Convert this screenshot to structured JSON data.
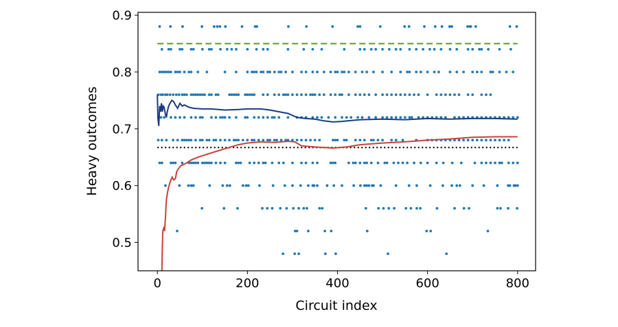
{
  "chart_data": {
    "type": "scatter",
    "title": "",
    "xlabel": "Circuit index",
    "ylabel": "Heavy outcomes",
    "xlim": [
      -43,
      840
    ],
    "ylim": [
      0.45,
      0.905
    ],
    "xticks": [
      0,
      200,
      400,
      600,
      800
    ],
    "yticks": [
      0.5,
      0.6,
      0.7,
      0.8,
      0.9
    ],
    "xtick_labels": [
      "0",
      "200",
      "400",
      "600",
      "800"
    ],
    "ytick_labels": [
      "0.5",
      "0.6",
      "0.7",
      "0.8",
      "0.9"
    ],
    "grid": false,
    "colors": {
      "points": "#1f77b4",
      "cumulative_mean": "#1a3a80",
      "lower_bound": "#c8413a",
      "ideal": "#5a9a2a",
      "threshold": "#000000"
    },
    "scatter_levels": [
      {
        "y": 0.88,
        "x": [
          5,
          29,
          56,
          99,
          126,
          133,
          139,
          151,
          188,
          217,
          221,
          291,
          331,
          389,
          445,
          450,
          495,
          549,
          559,
          593,
          617,
          632,
          649,
          654,
          689,
          694,
          696,
          707,
          783,
          798
        ]
      },
      {
        "y": 0.84,
        "x": [
          10,
          25,
          30,
          50,
          55,
          75,
          80,
          100,
          115,
          120,
          140,
          155,
          165,
          175,
          200,
          220,
          235,
          245,
          290,
          325,
          345,
          365,
          415,
          450,
          460,
          475,
          485,
          500,
          515,
          530,
          540,
          560,
          575,
          590,
          605,
          615,
          630,
          650,
          665,
          690,
          700,
          715,
          720,
          735,
          760,
          785
        ]
      },
      {
        "y": 0.8,
        "x": [
          5,
          10,
          15,
          20,
          25,
          30,
          40,
          45,
          50,
          60,
          70,
          75,
          90,
          110,
          150,
          175,
          200,
          210,
          215,
          220,
          230,
          235,
          245,
          250,
          260,
          270,
          275,
          285,
          300,
          320,
          330,
          345,
          355,
          370,
          385,
          395,
          400,
          410,
          415,
          425,
          440,
          455,
          465,
          480,
          500,
          520,
          540,
          555,
          560,
          575,
          585,
          600,
          615,
          625,
          650,
          665,
          680,
          700,
          710,
          720,
          740,
          745,
          760,
          775,
          790
        ]
      },
      {
        "y": 0.76,
        "x": [
          2,
          8,
          12,
          18,
          22,
          28,
          35,
          42,
          48,
          55,
          60,
          65,
          75,
          80,
          85,
          90,
          95,
          100,
          105,
          115,
          120,
          130,
          135,
          160,
          165,
          170,
          175,
          180,
          195,
          200,
          205,
          210,
          215,
          235,
          245,
          260,
          270,
          280,
          285,
          290,
          300,
          310,
          320,
          330,
          340,
          345,
          350,
          360,
          370,
          385,
          395,
          405,
          410,
          425,
          440,
          450,
          460,
          470,
          485,
          500,
          510,
          520,
          530,
          540,
          550,
          560,
          570,
          580,
          600,
          620,
          630,
          640,
          650,
          660,
          670,
          690,
          700,
          720,
          730,
          740
        ]
      },
      {
        "y": 0.72,
        "x": [
          3,
          8,
          15,
          30,
          40,
          50,
          60,
          75,
          85,
          95,
          100,
          120,
          130,
          140,
          145,
          150,
          160,
          175,
          195,
          200,
          215,
          225,
          235,
          245,
          255,
          260,
          270,
          290,
          310,
          320,
          330,
          345,
          355,
          365,
          380,
          395,
          410,
          420,
          430,
          445,
          455,
          470,
          485,
          500,
          510,
          520,
          530,
          540,
          550,
          560,
          565,
          580,
          590,
          600,
          610,
          620,
          630,
          640,
          660,
          670,
          680,
          690,
          700,
          710,
          720,
          730,
          740,
          750,
          760,
          770,
          780,
          790,
          800
        ]
      },
      {
        "y": 0.68,
        "x": [
          2,
          10,
          20,
          35,
          45,
          55,
          60,
          65,
          70,
          75,
          85,
          95,
          100,
          110,
          115,
          125,
          130,
          140,
          150,
          160,
          170,
          175,
          180,
          190,
          200,
          210,
          215,
          225,
          235,
          245,
          250,
          260,
          265,
          275,
          285,
          290,
          300,
          310,
          320,
          330,
          340,
          350,
          360,
          390,
          395,
          400,
          415,
          420,
          440,
          450,
          460,
          475,
          480,
          490,
          500,
          520,
          530,
          545,
          575,
          600,
          610,
          620,
          630,
          640,
          650,
          660,
          670,
          680,
          690,
          700,
          710,
          720,
          730,
          740,
          750,
          760,
          770,
          780
        ]
      },
      {
        "y": 0.64,
        "x": [
          5,
          10,
          30,
          35,
          40,
          55,
          70,
          75,
          80,
          85,
          90,
          100,
          105,
          110,
          115,
          120,
          130,
          140,
          150,
          175,
          180,
          185,
          205,
          215,
          225,
          235,
          240,
          255,
          270,
          280,
          300,
          320,
          330,
          345,
          355,
          385,
          390,
          395,
          425,
          435,
          440,
          450,
          460,
          465,
          475,
          490,
          505,
          510,
          525,
          535,
          545,
          555,
          570,
          585,
          600,
          620,
          635,
          655,
          675,
          705,
          720,
          730,
          740,
          750,
          760,
          765,
          780,
          790,
          800
        ]
      },
      {
        "y": 0.6,
        "x": [
          18,
          49,
          69,
          75,
          80,
          116,
          145,
          155,
          161,
          190,
          197,
          202,
          227,
          257,
          283,
          300,
          318,
          335,
          345,
          348,
          355,
          377,
          392,
          410,
          436,
          451,
          460,
          465,
          470,
          477,
          480,
          496,
          530,
          559,
          576,
          606,
          634,
          654,
          665,
          672,
          700,
          725,
          755,
          779,
          783,
          792,
          795,
          800
        ]
      },
      {
        "y": 0.56,
        "x": [
          99,
          148,
          178,
          233,
          244,
          255,
          273,
          287,
          302,
          314,
          325,
          332,
          360,
          366,
          463,
          491,
          502,
          514,
          526,
          552,
          563,
          576,
          584,
          621,
          660,
          681,
          692,
          755,
          762,
          779,
          799
        ]
      },
      {
        "y": 0.52,
        "x": [
          44,
          306,
          310,
          335,
          372,
          386,
          466,
          598,
          607,
          734
        ]
      },
      {
        "y": 0.48,
        "x": [
          279,
          305,
          314,
          373,
          396,
          512,
          642
        ]
      }
    ],
    "series": [
      {
        "type": "line",
        "style": "dashed",
        "color_key": "ideal",
        "x": [
          0,
          800
        ],
        "y": [
          0.85,
          0.85
        ]
      },
      {
        "type": "line",
        "style": "dotted",
        "color_key": "threshold",
        "x": [
          0,
          800
        ],
        "y": [
          0.667,
          0.667
        ]
      },
      {
        "type": "line",
        "style": "solid",
        "color_key": "cumulative_mean",
        "x": [
          0,
          1,
          3,
          5,
          7,
          9,
          11,
          13,
          15,
          18,
          20,
          22,
          25,
          28,
          32,
          36,
          40,
          45,
          50,
          55,
          60,
          70,
          80,
          100,
          120,
          150,
          180,
          200,
          230,
          250,
          270,
          290,
          310,
          330,
          350,
          370,
          390,
          410,
          450,
          500,
          550,
          600,
          650,
          700,
          750,
          800
        ],
        "y": [
          0.76,
          0.72,
          0.705,
          0.74,
          0.73,
          0.745,
          0.73,
          0.74,
          0.738,
          0.725,
          0.72,
          0.73,
          0.74,
          0.745,
          0.75,
          0.748,
          0.742,
          0.736,
          0.745,
          0.74,
          0.742,
          0.738,
          0.736,
          0.735,
          0.735,
          0.733,
          0.734,
          0.735,
          0.735,
          0.733,
          0.73,
          0.727,
          0.72,
          0.718,
          0.717,
          0.714,
          0.712,
          0.713,
          0.716,
          0.717,
          0.716,
          0.718,
          0.717,
          0.718,
          0.718,
          0.717
        ]
      },
      {
        "type": "line",
        "style": "solid",
        "color_key": "lower_bound",
        "x": [
          10,
          11,
          12,
          14,
          16,
          18,
          20,
          23,
          26,
          30,
          33,
          36,
          40,
          43,
          47,
          52,
          58,
          65,
          75,
          90,
          110,
          130,
          150,
          180,
          200,
          230,
          260,
          290,
          305,
          320,
          350,
          390,
          420,
          450,
          500,
          550,
          600,
          650,
          700,
          750,
          800
        ],
        "y": [
          0.45,
          0.49,
          0.52,
          0.525,
          0.52,
          0.545,
          0.575,
          0.59,
          0.6,
          0.61,
          0.615,
          0.61,
          0.612,
          0.625,
          0.63,
          0.635,
          0.637,
          0.64,
          0.645,
          0.65,
          0.655,
          0.66,
          0.665,
          0.672,
          0.675,
          0.677,
          0.676,
          0.678,
          0.677,
          0.67,
          0.668,
          0.666,
          0.668,
          0.672,
          0.675,
          0.677,
          0.68,
          0.682,
          0.685,
          0.686,
          0.686
        ]
      }
    ]
  }
}
